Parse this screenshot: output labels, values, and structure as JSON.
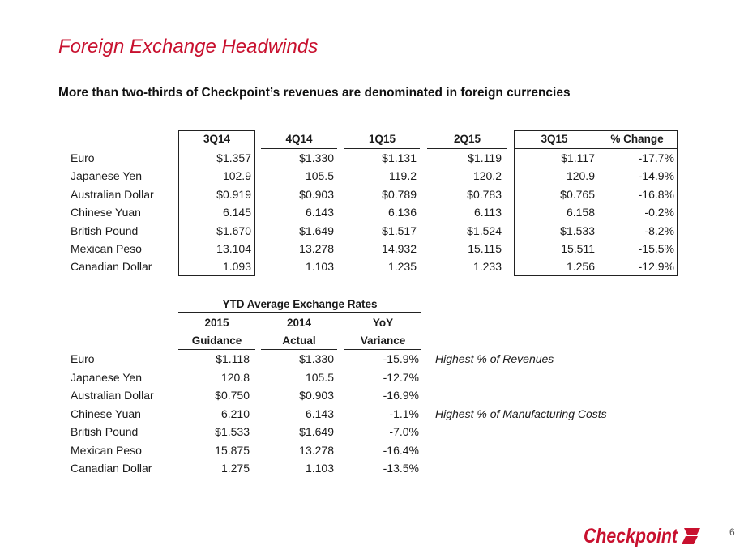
{
  "title": "Foreign Exchange Headwinds",
  "subtitle": "More than two-thirds of Checkpoint’s revenues are denominated in foreign currencies",
  "colors": {
    "accent": "#c8102e"
  },
  "table1": {
    "headers": [
      "3Q14",
      "4Q14",
      "1Q15",
      "2Q15",
      "3Q15",
      "% Change"
    ],
    "rows": [
      {
        "label": "Euro",
        "values": [
          "$1.357",
          "$1.330",
          "$1.131",
          "$1.119",
          "$1.117",
          "-17.7%"
        ]
      },
      {
        "label": "Japanese Yen",
        "values": [
          "102.9",
          "105.5",
          "119.2",
          "120.2",
          "120.9",
          "-14.9%"
        ]
      },
      {
        "label": "Australian Dollar",
        "values": [
          "$0.919",
          "$0.903",
          "$0.789",
          "$0.783",
          "$0.765",
          "-16.8%"
        ]
      },
      {
        "label": "Chinese Yuan",
        "values": [
          "6.145",
          "6.143",
          "6.136",
          "6.113",
          "6.158",
          "-0.2%"
        ]
      },
      {
        "label": "British Pound",
        "values": [
          "$1.670",
          "$1.649",
          "$1.517",
          "$1.524",
          "$1.533",
          "-8.2%"
        ]
      },
      {
        "label": "Mexican Peso",
        "values": [
          "13.104",
          "13.278",
          "14.932",
          "15.115",
          "15.511",
          "-15.5%"
        ]
      },
      {
        "label": "Canadian Dollar",
        "values": [
          "1.093",
          "1.103",
          "1.235",
          "1.233",
          "1.256",
          "-12.9%"
        ]
      }
    ]
  },
  "table2": {
    "group_header": "YTD Average Exchange Rates",
    "headers_line1": [
      "2015",
      "2014",
      "YoY"
    ],
    "headers_line2": [
      "Guidance",
      "Actual",
      "Variance"
    ],
    "rows": [
      {
        "label": "Euro",
        "values": [
          "$1.118",
          "$1.330",
          "-15.9%"
        ],
        "note": "Highest % of Revenues"
      },
      {
        "label": "Japanese Yen",
        "values": [
          "120.8",
          "105.5",
          "-12.7%"
        ],
        "note": ""
      },
      {
        "label": "Australian Dollar",
        "values": [
          "$0.750",
          "$0.903",
          "-16.9%"
        ],
        "note": ""
      },
      {
        "label": "Chinese Yuan",
        "values": [
          "6.210",
          "6.143",
          "-1.1%"
        ],
        "note": "Highest % of Manufacturing Costs"
      },
      {
        "label": "British Pound",
        "values": [
          "$1.533",
          "$1.649",
          "-7.0%"
        ],
        "note": ""
      },
      {
        "label": "Mexican Peso",
        "values": [
          "15.875",
          "13.278",
          "-16.4%"
        ],
        "note": ""
      },
      {
        "label": "Canadian Dollar",
        "values": [
          "1.275",
          "1.103",
          "-13.5%"
        ],
        "note": ""
      }
    ]
  },
  "logo_text": "Checkpoint",
  "page_number": "6"
}
